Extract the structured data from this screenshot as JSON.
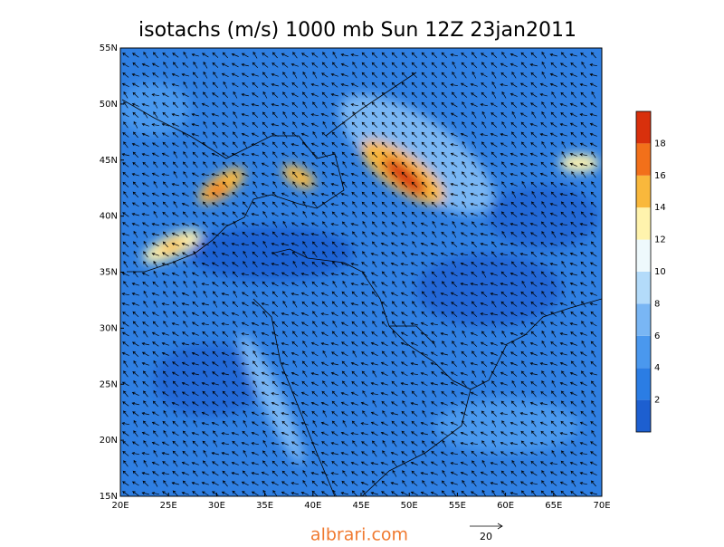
{
  "title": "isotachs (m/s) 1000 mb Sun 12Z 23jan2011",
  "lon_labels": [
    "20E",
    "25E",
    "30E",
    "35E",
    "40E",
    "45E",
    "50E",
    "55E",
    "60E",
    "65E",
    "70E"
  ],
  "lat_labels": [
    "15N",
    "20N",
    "25N",
    "30N",
    "35N",
    "40N",
    "45N",
    "50N",
    "55N"
  ],
  "colorbar": {
    "range": [
      0,
      20
    ],
    "ticks": [
      2,
      4,
      6,
      8,
      10,
      12,
      14,
      16,
      18
    ],
    "colors": [
      "#1d5fd0",
      "#2b7de4",
      "#4a98ee",
      "#79b6f4",
      "#b3dbfa",
      "#eef9fc",
      "#fff3ad",
      "#f9b83c",
      "#f2701a",
      "#d8300c",
      "#a00d06"
    ]
  },
  "reference_vector": "20",
  "watermark": "albrari.com"
}
